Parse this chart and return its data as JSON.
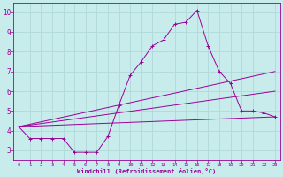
{
  "xlabel": "Windchill (Refroidissement éolien,°C)",
  "bg_color": "#c8ecec",
  "line_color": "#990099",
  "grid_color": "#b0d8d8",
  "x_ticks": [
    0,
    1,
    2,
    3,
    4,
    5,
    6,
    7,
    8,
    9,
    10,
    11,
    12,
    13,
    14,
    15,
    16,
    17,
    18,
    19,
    20,
    21,
    22,
    23
  ],
  "y_ticks": [
    3,
    4,
    5,
    6,
    7,
    8,
    9,
    10
  ],
  "xlim": [
    -0.5,
    23.5
  ],
  "ylim": [
    2.5,
    10.5
  ],
  "line1_x": [
    0,
    1,
    2,
    3,
    4,
    5,
    6,
    7,
    8,
    9,
    10,
    11,
    12,
    13,
    14,
    15,
    16,
    17,
    18,
    19,
    20,
    21,
    22,
    23
  ],
  "line1_y": [
    4.2,
    3.6,
    3.6,
    3.6,
    3.6,
    2.9,
    2.9,
    2.9,
    3.7,
    5.3,
    6.8,
    7.5,
    8.3,
    8.6,
    9.4,
    9.5,
    10.1,
    8.3,
    7.0,
    6.4,
    5.0,
    5.0,
    4.9,
    4.7
  ],
  "line2_x": [
    0,
    23
  ],
  "line2_y": [
    4.2,
    4.7
  ],
  "line3_x": [
    0,
    23
  ],
  "line3_y": [
    4.2,
    6.0
  ],
  "line4_x": [
    0,
    23
  ],
  "line4_y": [
    4.2,
    7.0
  ]
}
